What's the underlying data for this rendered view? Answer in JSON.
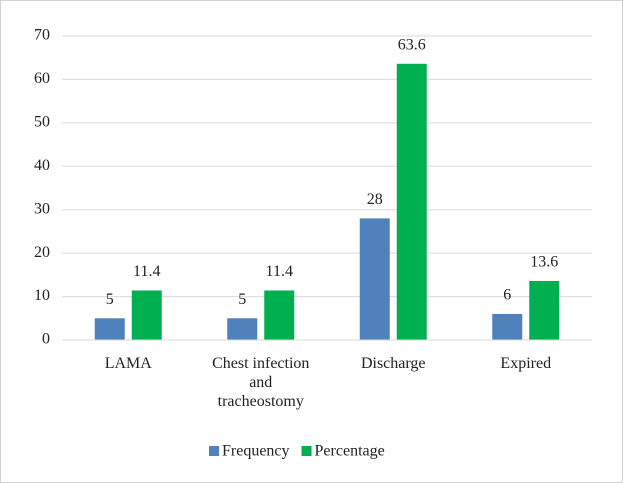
{
  "chart_data": {
    "type": "bar",
    "categories": [
      "LAMA",
      "Chest infection and tracheostomy",
      "Discharge",
      "Expired"
    ],
    "series": [
      {
        "name": "Frequency",
        "color": "#4f81bd",
        "values": [
          5,
          5,
          28,
          6
        ]
      },
      {
        "name": "Percentage",
        "color": "#00b050",
        "values": [
          11.4,
          11.4,
          63.6,
          13.6
        ]
      }
    ],
    "ylim": [
      0,
      70
    ],
    "yticks": [
      0,
      10,
      20,
      30,
      40,
      50,
      60,
      70
    ],
    "grid": true,
    "legend": "bottom"
  }
}
